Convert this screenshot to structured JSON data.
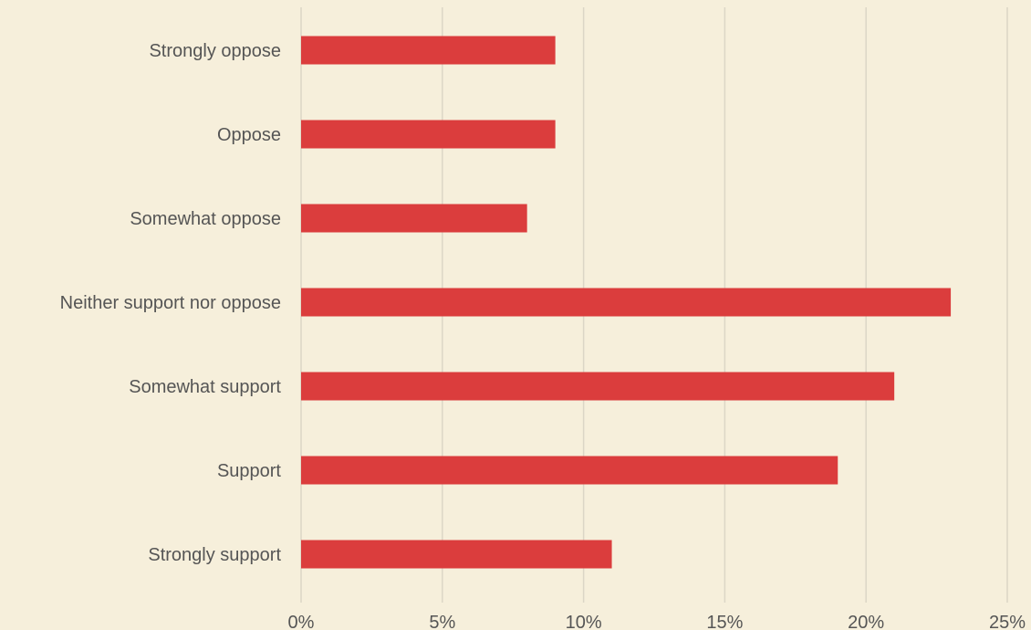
{
  "chart_data": {
    "type": "bar",
    "orientation": "horizontal",
    "title": "",
    "xlabel": "",
    "ylabel": "",
    "categories": [
      "Strongly oppose",
      "Oppose",
      "Somewhat oppose",
      "Neither support nor oppose",
      "Somewhat support",
      "Support",
      "Strongly support"
    ],
    "values": [
      9,
      9,
      8,
      23,
      21,
      19,
      11
    ],
    "unit": "%",
    "xlim": [
      0,
      25
    ],
    "ticks": [
      0,
      5,
      10,
      15,
      20,
      25
    ],
    "tick_labels": [
      "0%",
      "5%",
      "10%",
      "15%",
      "20%",
      "25%"
    ],
    "grid": "vertical",
    "legend": "none",
    "colors": {
      "bar": "#db3d3d",
      "background": "#f6efdb",
      "grid": "#dcd6c6",
      "text": "#555555"
    }
  }
}
